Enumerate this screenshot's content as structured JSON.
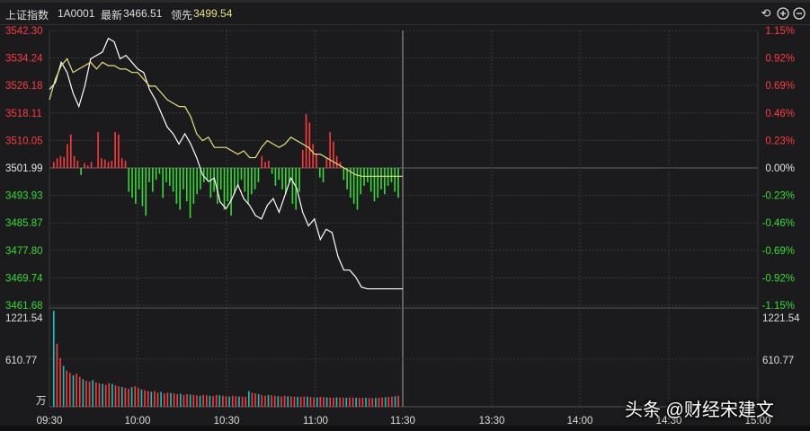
{
  "header": {
    "index_name": "上证指数",
    "code": "1A0001",
    "latest_label": "最新",
    "latest_value": "3466.51",
    "leading_label": "领先",
    "leading_value": "3499.54",
    "buttons": [
      "reset-icon",
      "zoom-in-icon",
      "zoom-out-icon"
    ]
  },
  "colors": {
    "up": "#ff3b3b",
    "down": "#33dd33",
    "neutral": "#e6e6e6",
    "price": "#ffffff",
    "lead": "#e8e07a",
    "vol_up": "#ff3b3b",
    "vol_down": "#00cccc"
  },
  "chart_data": {
    "type": "line",
    "price_axis": {
      "left_ticks": [
        "3542.30",
        "3534.24",
        "3526.18",
        "3518.11",
        "3510.05",
        "3501.99",
        "3493.93",
        "3485.87",
        "3477.80",
        "3469.74",
        "3461.68"
      ],
      "right_ticks": [
        "1.15%",
        "0.92%",
        "0.69%",
        "0.46%",
        "0.23%",
        "0.00%",
        "-0.23%",
        "-0.46%",
        "-0.69%",
        "-0.92%",
        "-1.15%"
      ],
      "ylim": [
        3461.68,
        3542.3
      ],
      "prev_close": 3501.99
    },
    "volume_axis": {
      "ticks": [
        "1221.54",
        "610.77"
      ],
      "unit_label": "万",
      "ylim": [
        0,
        1221.54
      ]
    },
    "time_axis": {
      "ticks": [
        "09:30",
        "10:00",
        "10:30",
        "11:00",
        "11:30",
        "13:30",
        "14:00",
        "14:30",
        "15:00"
      ]
    },
    "series": [
      {
        "name": "最新",
        "x_minutes": [
          0,
          2,
          4,
          6,
          8,
          10,
          12,
          14,
          16,
          18,
          20,
          22,
          24,
          26,
          28,
          30,
          32,
          34,
          36,
          38,
          40,
          42,
          44,
          46,
          48,
          50,
          52,
          54,
          56,
          58,
          60,
          62,
          64,
          66,
          68,
          70,
          72,
          74,
          76,
          78,
          80,
          82,
          84,
          86,
          88,
          90,
          92,
          94,
          96,
          98,
          100,
          102,
          104,
          106,
          108,
          110,
          112,
          114,
          116,
          118,
          120
        ],
        "values": [
          3525,
          3527,
          3533,
          3530,
          3524,
          3520,
          3526,
          3534,
          3535,
          3536,
          3540,
          3539,
          3534,
          3535,
          3533,
          3531,
          3530,
          3525,
          3522,
          3518,
          3514,
          3512,
          3509,
          3512,
          3509,
          3505,
          3500,
          3498,
          3499,
          3492,
          3490,
          3493,
          3497,
          3493,
          3491,
          3488,
          3487,
          3491,
          3493,
          3489,
          3494,
          3499,
          3496,
          3489,
          3485,
          3487,
          3481,
          3484,
          3483,
          3476,
          3472,
          3472,
          3470,
          3467,
          3466.51,
          3466.51,
          3466.51,
          3466.51,
          3466.51,
          3466.51,
          3466.51
        ]
      },
      {
        "name": "领先",
        "x_minutes": [
          0,
          2,
          4,
          6,
          8,
          10,
          12,
          14,
          16,
          18,
          20,
          22,
          24,
          26,
          28,
          30,
          32,
          34,
          36,
          38,
          40,
          42,
          44,
          46,
          48,
          50,
          52,
          54,
          56,
          58,
          60,
          62,
          64,
          66,
          68,
          70,
          72,
          74,
          76,
          78,
          80,
          82,
          84,
          86,
          88,
          90,
          92,
          94,
          96,
          98,
          100,
          102,
          104,
          106,
          108,
          110,
          112,
          114,
          116,
          118,
          120
        ],
        "values": [
          3522,
          3528,
          3532,
          3534,
          3530,
          3531,
          3532,
          3533,
          3531,
          3533,
          3532,
          3532,
          3531,
          3531,
          3530,
          3530,
          3528,
          3526,
          3526,
          3524,
          3522,
          3521,
          3520,
          3520,
          3517,
          3512,
          3510,
          3511,
          3508,
          3508,
          3508,
          3507,
          3506,
          3507,
          3505,
          3505,
          3508,
          3510,
          3509,
          3508,
          3509,
          3511,
          3510,
          3509,
          3508,
          3506,
          3506,
          3505,
          3504,
          3503,
          3502,
          3501,
          3500,
          3499.54,
          3499.54,
          3499.54,
          3499.54,
          3499.54,
          3499.54,
          3499.54,
          3499.54
        ]
      }
    ],
    "diff_bars_pct": [
      0.05,
      0.08,
      0.1,
      0.09,
      0.2,
      0.28,
      0.1,
      0.06,
      -0.06,
      0.04,
      0.02,
      0.05,
      0.0,
      0.3,
      0.08,
      0.07,
      0.05,
      0.06,
      0.3,
      0.28,
      0.08,
      0.06,
      -0.2,
      -0.25,
      -0.3,
      -0.18,
      -0.32,
      -0.4,
      -0.12,
      -0.2,
      -0.1,
      -0.05,
      -0.25,
      -0.12,
      -0.15,
      -0.2,
      -0.3,
      -0.35,
      -0.18,
      -0.28,
      -0.42,
      -0.3,
      -0.22,
      -0.18,
      -0.12,
      -0.1,
      -0.25,
      -0.2,
      -0.3,
      -0.18,
      -0.35,
      -0.28,
      -0.4,
      -0.22,
      -0.15,
      -0.1,
      -0.2,
      -0.3,
      -0.22,
      -0.18,
      -0.12,
      0.1,
      0.05,
      0.06,
      -0.05,
      -0.15,
      -0.1,
      -0.18,
      -0.22,
      -0.12,
      -0.3,
      -0.35,
      -0.2,
      0.15,
      0.45,
      0.38,
      0.2,
      0.12,
      -0.08,
      -0.12,
      0.08,
      0.3,
      0.22,
      0.1,
      0.05,
      -0.1,
      -0.18,
      -0.25,
      -0.3,
      -0.35,
      -0.22,
      -0.15,
      -0.12,
      -0.2,
      -0.28,
      -0.25,
      -0.18,
      -0.22,
      -0.15,
      -0.12,
      -0.2,
      -0.25
    ],
    "volume_bars": [
      1221,
      800,
      620,
      520,
      460,
      430,
      400,
      420,
      380,
      350,
      330,
      320,
      340,
      310,
      300,
      290,
      280,
      300,
      290,
      270,
      260,
      250,
      240,
      230,
      250,
      260,
      240,
      220,
      210,
      200,
      190,
      200,
      180,
      190,
      170,
      180,
      175,
      170,
      160,
      165,
      150,
      160,
      155,
      150,
      145,
      140,
      150,
      145,
      140,
      135,
      150,
      145,
      140,
      135,
      130,
      140,
      135,
      130,
      128,
      126,
      200,
      180,
      170,
      160,
      150,
      140,
      150,
      145,
      140,
      135,
      130,
      140,
      135,
      130,
      128,
      126,
      125,
      130,
      128,
      124,
      120,
      118,
      125,
      122,
      120,
      118,
      116,
      120,
      118,
      116,
      114,
      118,
      116,
      114,
      112,
      115,
      113,
      112,
      110,
      112,
      115,
      118,
      120,
      125,
      130,
      135,
      140
    ]
  },
  "watermark": "头条 @财经宋建文"
}
